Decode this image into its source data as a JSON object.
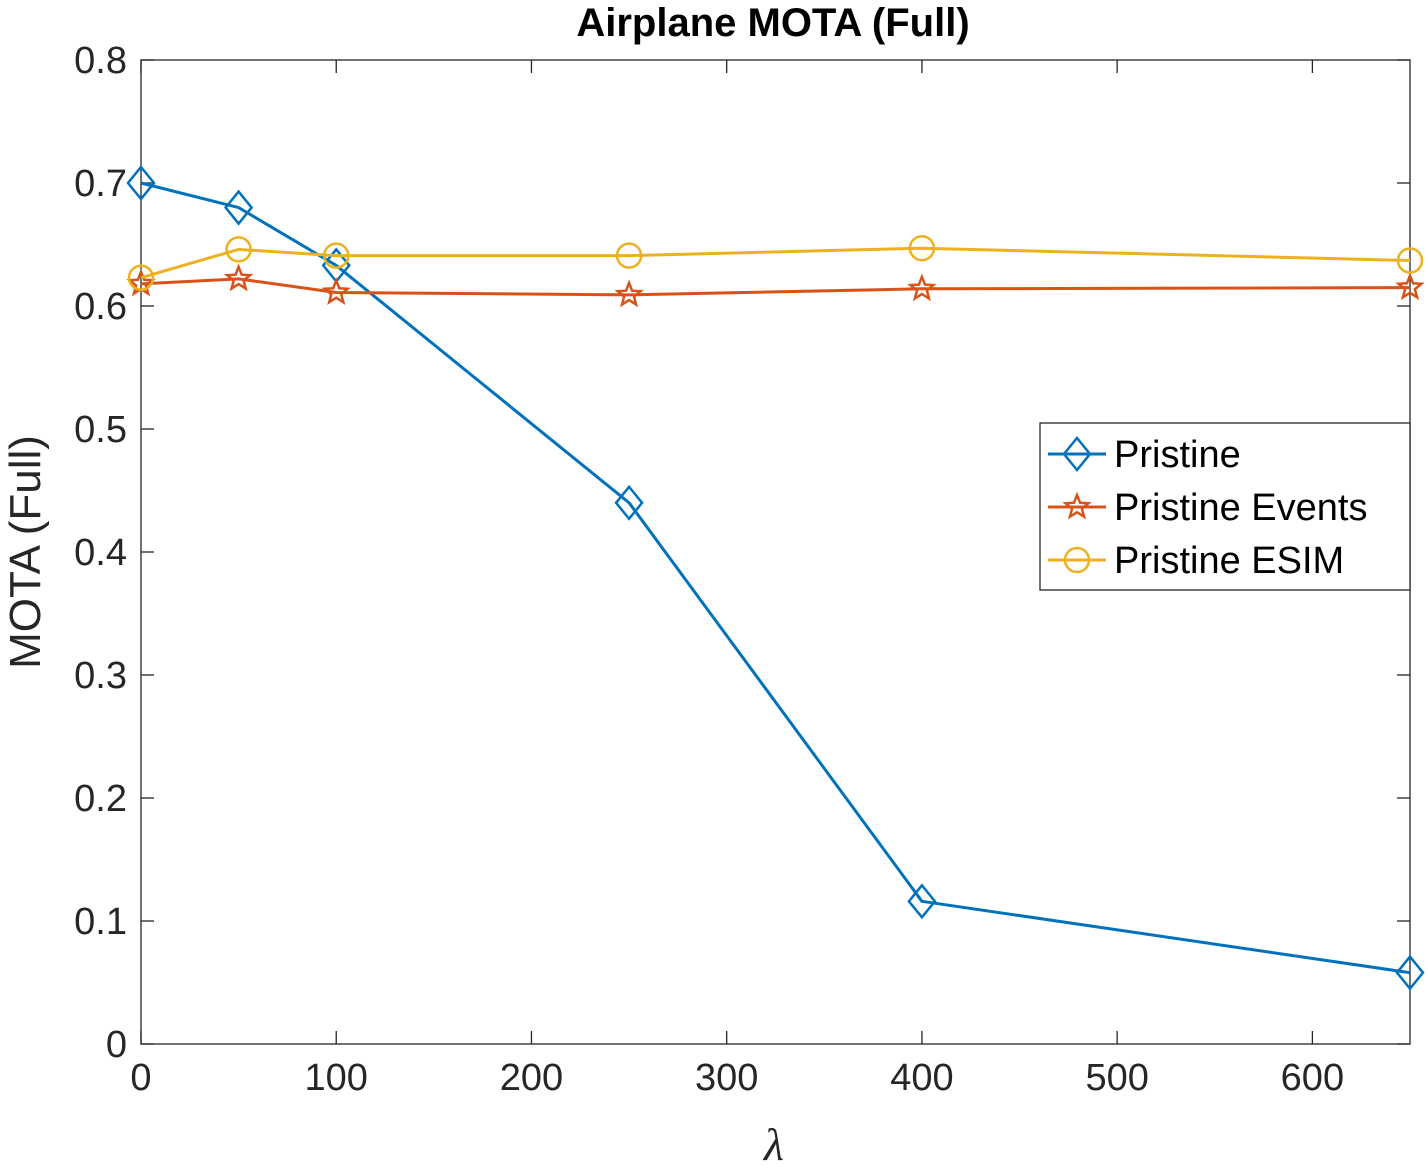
{
  "chart_data": {
    "type": "line",
    "title": "Airplane MOTA (Full)",
    "xlabel": "λ",
    "ylabel": "MOTA (Full)",
    "xlim": [
      0,
      650
    ],
    "ylim": [
      0,
      0.8
    ],
    "xticks": [
      0,
      100,
      200,
      300,
      400,
      500,
      600
    ],
    "xtick_labels": [
      "0",
      "100",
      "200",
      "300",
      "400",
      "500",
      "600"
    ],
    "yticks": [
      0,
      0.1,
      0.2,
      0.3,
      0.4,
      0.5,
      0.6,
      0.7,
      0.8
    ],
    "ytick_labels": [
      "0",
      "0.1",
      "0.2",
      "0.3",
      "0.4",
      "0.5",
      "0.6",
      "0.7",
      "0.8"
    ],
    "grid": false,
    "legend_position": "right",
    "x": [
      0,
      50,
      100,
      250,
      400,
      650
    ],
    "series": [
      {
        "name": "Pristine",
        "color": "#0072BD",
        "marker": "diamond",
        "values": [
          0.7,
          0.68,
          0.633,
          0.44,
          0.116,
          0.058
        ]
      },
      {
        "name": "Pristine Events",
        "color": "#D95319",
        "marker": "pentagram",
        "values": [
          0.618,
          0.622,
          0.611,
          0.609,
          0.614,
          0.615
        ]
      },
      {
        "name": "Pristine ESIM",
        "color": "#EDB120",
        "marker": "circle",
        "values": [
          0.623,
          0.646,
          0.641,
          0.641,
          0.647,
          0.637
        ]
      }
    ]
  }
}
